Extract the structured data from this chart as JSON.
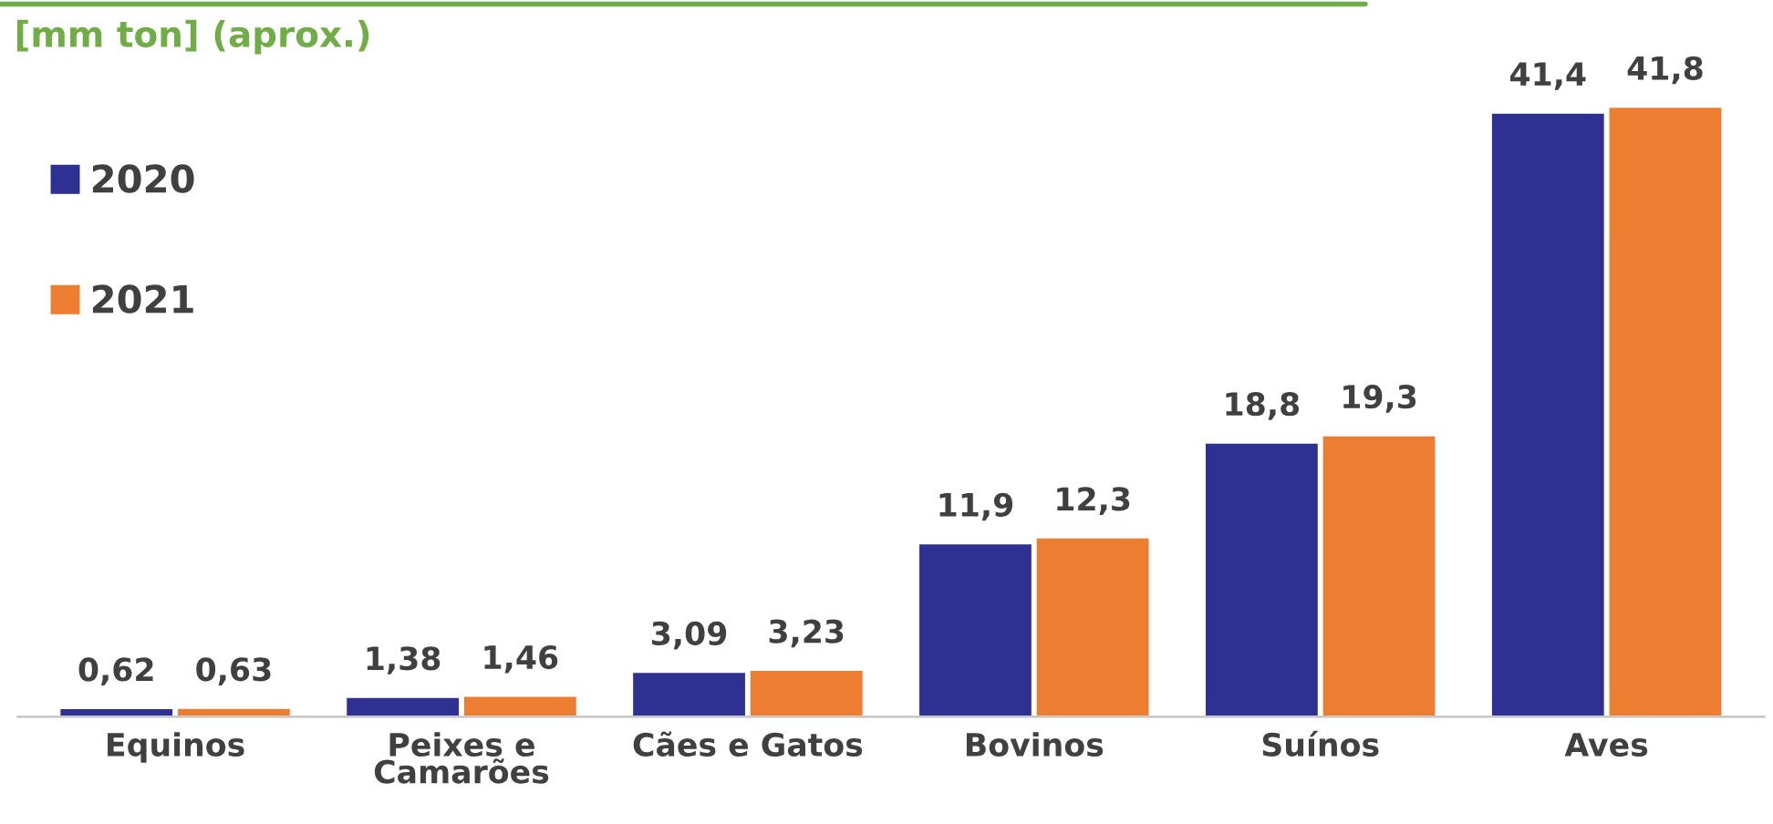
{
  "chart_data": {
    "type": "bar",
    "title": "[mm ton] (aprox.)",
    "categories": [
      "Equinos",
      "Peixes e Camarões",
      "Cães e Gatos",
      "Bovinos",
      "Suínos",
      "Aves"
    ],
    "series": [
      {
        "name": "2020",
        "color": "#2e3192",
        "values": [
          0.62,
          1.38,
          3.09,
          11.9,
          18.8,
          41.4
        ],
        "value_labels": [
          "0,62",
          "1,38",
          "3,09",
          "11,9",
          "18,8",
          "41,4"
        ]
      },
      {
        "name": "2021",
        "color": "#ed7d31",
        "values": [
          0.63,
          1.46,
          3.23,
          12.3,
          19.3,
          41.8
        ],
        "value_labels": [
          "0,63",
          "1,46",
          "3,23",
          "12,3",
          "19,3",
          "41,8"
        ]
      }
    ],
    "legend": "left",
    "grid": false
  }
}
